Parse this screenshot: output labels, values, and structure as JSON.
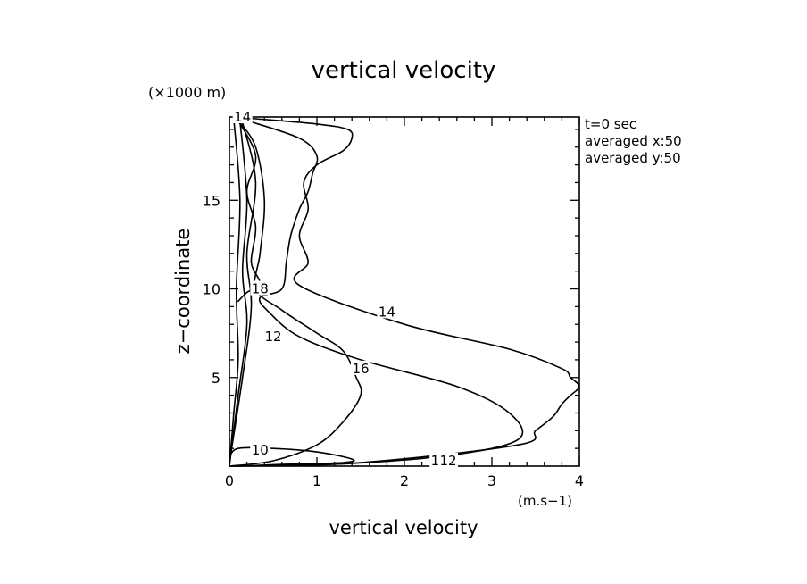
{
  "chart_data": {
    "type": "line",
    "title": "vertical velocity",
    "xlabel": "vertical velocity",
    "ylabel": "z−coordinate",
    "x_units": "(m.s−1)",
    "y_units": "(×1000 m)",
    "xlim": [
      0,
      4
    ],
    "ylim": [
      0,
      19.7
    ],
    "x_ticks": [
      "0",
      "1",
      "2",
      "3",
      "4"
    ],
    "y_ticks": [
      "5",
      "10",
      "15"
    ],
    "x_tick_values": [
      0,
      1,
      2,
      3,
      4
    ],
    "y_tick_values": [
      5,
      10,
      15
    ],
    "grid": false,
    "annotations": [
      "t=0 sec",
      "averaged  x:50",
      "averaged  y:50"
    ],
    "series": [
      {
        "label": "14",
        "x": [
          0.0,
          1.5,
          3.3,
          3.5,
          3.7,
          3.8,
          3.9,
          4.0,
          3.9,
          3.8,
          3.2,
          2.0,
          0.8,
          0.9,
          0.8,
          0.9,
          0.85,
          1.0,
          1.3,
          1.4,
          1.35,
          1.0,
          0.3,
          0.05
        ],
        "y": [
          0.0,
          0.2,
          1.2,
          2.0,
          2.8,
          3.5,
          4.0,
          4.5,
          5.0,
          5.5,
          6.6,
          8.0,
          10.2,
          11.5,
          13.0,
          14.5,
          16.0,
          17.0,
          17.8,
          18.5,
          19.0,
          19.3,
          19.6,
          19.7
        ]
      },
      {
        "label": "14",
        "x": [
          0.05,
          0.1,
          0.15,
          0.2
        ],
        "y": [
          19.7,
          19.68,
          19.65,
          19.6
        ]
      },
      {
        "label": "12",
        "x": [
          0.0,
          1.2,
          2.5,
          3.3,
          3.2,
          2.6,
          1.5,
          0.8,
          0.45,
          0.35,
          0.6,
          0.65,
          0.7,
          0.8,
          0.9,
          0.95,
          1.0,
          0.8,
          0.2
        ],
        "y": [
          0.0,
          0.1,
          0.6,
          1.5,
          3.0,
          4.5,
          6.0,
          7.3,
          8.7,
          9.5,
          10.0,
          11.5,
          13.0,
          14.5,
          15.5,
          16.5,
          17.5,
          18.5,
          19.5
        ]
      },
      {
        "label": "16",
        "x": [
          0.0,
          0.5,
          1.0,
          1.3,
          1.5,
          1.45,
          1.3,
          1.0,
          0.6,
          0.3,
          0.35,
          0.4,
          0.3,
          0.1
        ],
        "y": [
          0.0,
          0.3,
          1.2,
          2.5,
          4.0,
          5.0,
          6.5,
          7.5,
          8.8,
          10.0,
          12.0,
          15.0,
          18.0,
          19.5
        ]
      },
      {
        "label": "18",
        "x": [
          0.1,
          0.2,
          0.35,
          0.25,
          0.3,
          0.2,
          0.3,
          0.1
        ],
        "y": [
          9.3,
          9.8,
          10.3,
          11.5,
          13.5,
          15.5,
          17.5,
          19.5
        ]
      },
      {
        "label": "10",
        "x": [
          0.0,
          0.1,
          0.5,
          1.0,
          1.4,
          1.3,
          0.6,
          0.1
        ],
        "y": [
          0.5,
          1.0,
          1.0,
          0.8,
          0.4,
          0.2,
          0.1,
          0.0
        ]
      },
      {
        "label": "",
        "x": [
          0.0,
          0.05,
          0.1,
          0.08,
          0.12,
          0.05
        ],
        "y": [
          0.0,
          3.0,
          6.0,
          10.0,
          15.0,
          19.6
        ]
      },
      {
        "label": "",
        "x": [
          0.0,
          0.1,
          0.2,
          0.15,
          0.2,
          0.12
        ],
        "y": [
          0.0,
          4.0,
          8.0,
          11.0,
          15.0,
          19.5
        ]
      },
      {
        "label": "",
        "x": [
          0.0,
          0.15,
          0.25,
          0.2,
          0.3,
          0.15
        ],
        "y": [
          0.2,
          5.0,
          9.0,
          12.0,
          16.0,
          19.4
        ]
      }
    ],
    "contour_labels": [
      {
        "text": "14",
        "x": 0.15,
        "y": 19.7
      },
      {
        "text": "18",
        "x": 0.35,
        "y": 10.0
      },
      {
        "text": "12",
        "x": 0.5,
        "y": 7.3
      },
      {
        "text": "14",
        "x": 1.8,
        "y": 8.7
      },
      {
        "text": "16",
        "x": 1.5,
        "y": 5.5
      },
      {
        "text": "10",
        "x": 0.35,
        "y": 0.9
      },
      {
        "text": "14",
        "x": 2.4,
        "y": 0.3
      },
      {
        "text": "12",
        "x": 2.5,
        "y": 0.3
      }
    ]
  }
}
